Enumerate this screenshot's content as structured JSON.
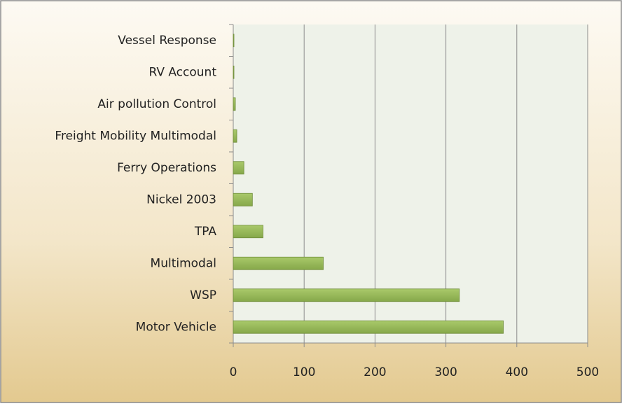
{
  "chart_data": {
    "type": "bar",
    "orientation": "horizontal",
    "categories": [
      "Vessel Response",
      "RV Account",
      "Air pollution Control",
      "Freight Mobility Multimodal",
      "Ferry Operations",
      "Nickel 2003",
      "TPA",
      "Multimodal",
      "WSP",
      "Motor Vehicle"
    ],
    "values": [
      1,
      1,
      3,
      5,
      15,
      27,
      42,
      127,
      319,
      381
    ],
    "color": "#9bbb59",
    "xlim": [
      0,
      500
    ],
    "xticks": [
      0,
      100,
      200,
      300,
      400,
      500
    ],
    "grid": true
  }
}
